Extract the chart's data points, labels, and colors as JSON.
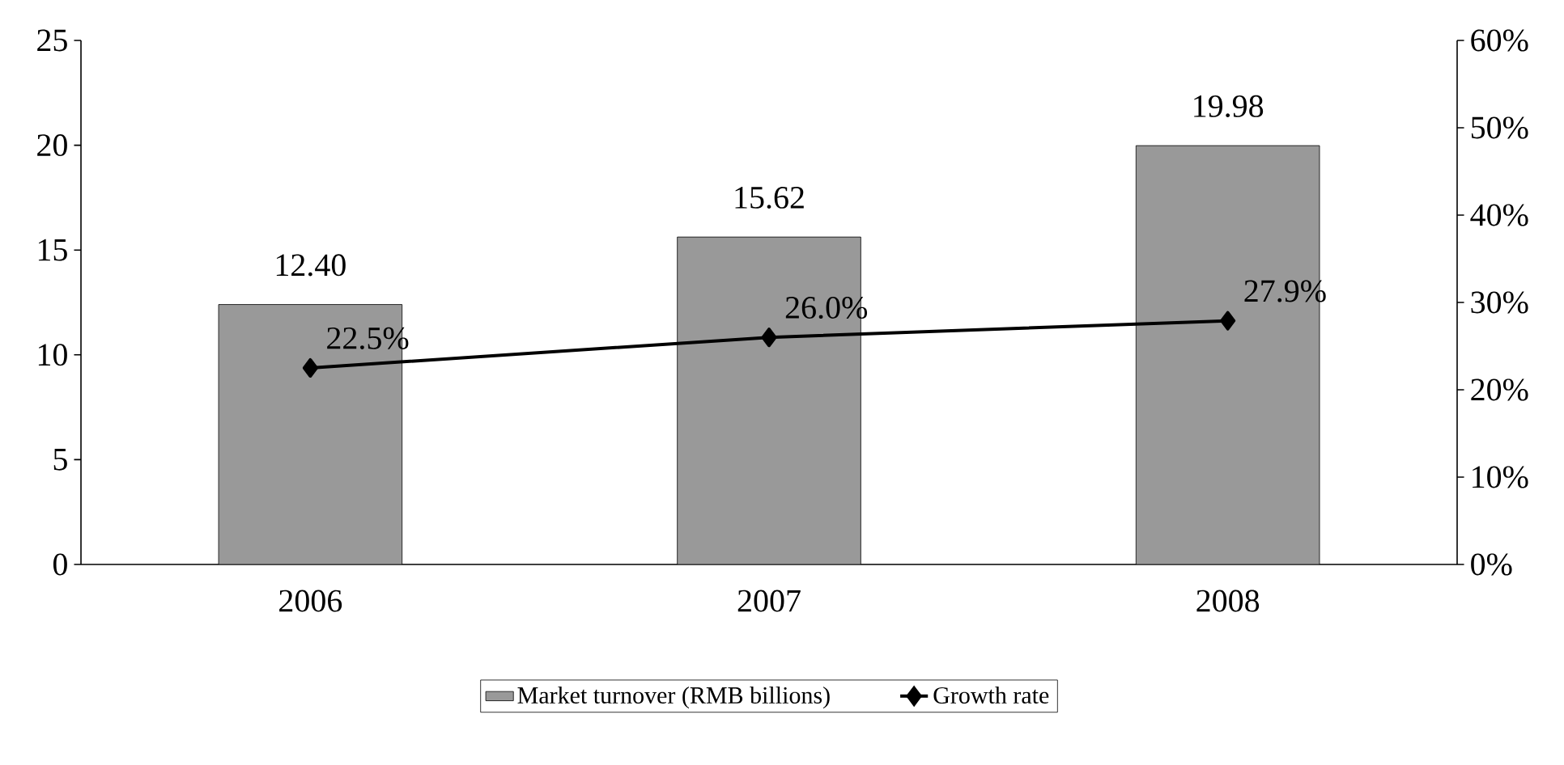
{
  "chart_data": {
    "type": "bar",
    "categories": [
      "2006",
      "2007",
      "2008"
    ],
    "series": [
      {
        "name": "Market turnover (RMB billions)",
        "color": "#999999",
        "values": [
          12.4,
          15.62,
          19.98
        ],
        "value_labels": [
          "12.40",
          "15.62",
          "19.98"
        ]
      },
      {
        "name": "Growth rate",
        "type": "line",
        "axis": "y2",
        "color": "#000000",
        "values": [
          22.5,
          26.0,
          27.9
        ],
        "value_labels": [
          "22.5%",
          "26.0%",
          "27.9%"
        ]
      }
    ],
    "ylim": [
      0,
      25
    ],
    "yticks": [
      0,
      5,
      10,
      15,
      20,
      25
    ],
    "y2lim": [
      0,
      60
    ],
    "y2ticks": [
      {
        "value": 0,
        "label": "0%"
      },
      {
        "value": 10,
        "label": "10%"
      },
      {
        "value": 20,
        "label": "20%"
      },
      {
        "value": 30,
        "label": "30%"
      },
      {
        "value": 40,
        "label": "40%"
      },
      {
        "value": 50,
        "label": "50%"
      },
      {
        "value": 60,
        "label": "60%"
      }
    ],
    "legend": "bottom",
    "marker": "diamond",
    "line_style": "solid",
    "grid": false
  }
}
